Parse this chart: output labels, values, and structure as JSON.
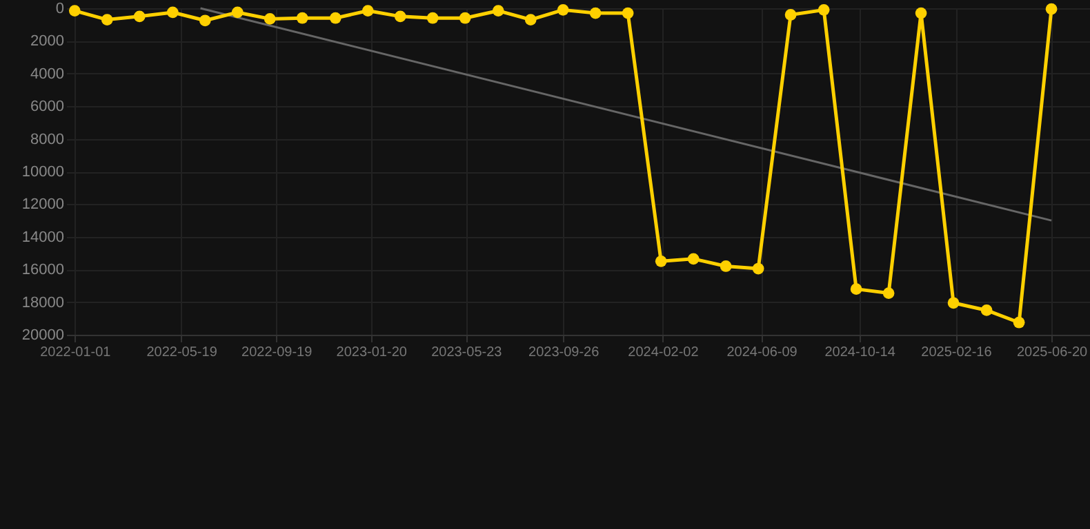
{
  "chart_data": {
    "type": "line",
    "xlim": [
      "2021-12-21",
      "2025-08-09"
    ],
    "xticks": [
      "2022-01-01",
      "2022-05-19",
      "2022-09-19",
      "2023-01-20",
      "2023-05-23",
      "2023-09-26",
      "2024-02-02",
      "2024-06-09",
      "2024-10-14",
      "2025-02-16",
      "2025-06-20"
    ],
    "ylim": [
      20000,
      0
    ],
    "yticks": [
      0,
      2000,
      4000,
      6000,
      8000,
      10000,
      12000,
      14000,
      16000,
      18000,
      20000
    ],
    "grid": true,
    "marker": "circle",
    "line_style": "solid",
    "series": [
      {
        "color": "#ffd000",
        "x": [
          "2022-01-01",
          "2022-02-12",
          "2022-03-26",
          "2022-05-08",
          "2022-06-19",
          "2022-07-31",
          "2022-09-11",
          "2022-10-23",
          "2022-12-05",
          "2023-01-16",
          "2023-02-27",
          "2023-04-10",
          "2023-05-22",
          "2023-07-04",
          "2023-08-15",
          "2023-09-26",
          "2023-11-07",
          "2023-12-19",
          "2024-01-31",
          "2024-03-13",
          "2024-04-24",
          "2024-06-05",
          "2024-07-17",
          "2024-08-29",
          "2024-10-10",
          "2024-11-21",
          "2025-01-02",
          "2025-02-13",
          "2025-03-28",
          "2025-05-09",
          "2025-06-20"
        ],
        "values": [
          150,
          700,
          500,
          250,
          750,
          250,
          650,
          600,
          600,
          150,
          500,
          600,
          600,
          150,
          700,
          100,
          300,
          300,
          15500,
          15350,
          15800,
          15950,
          400,
          100,
          17200,
          17450,
          300,
          18050,
          18500,
          19250,
          50
        ]
      },
      {
        "type": "line",
        "color": "#666666",
        "marker": "none",
        "x": [
          "2022-06-13",
          "2025-06-20"
        ],
        "values": [
          0,
          13000
        ]
      }
    ]
  }
}
